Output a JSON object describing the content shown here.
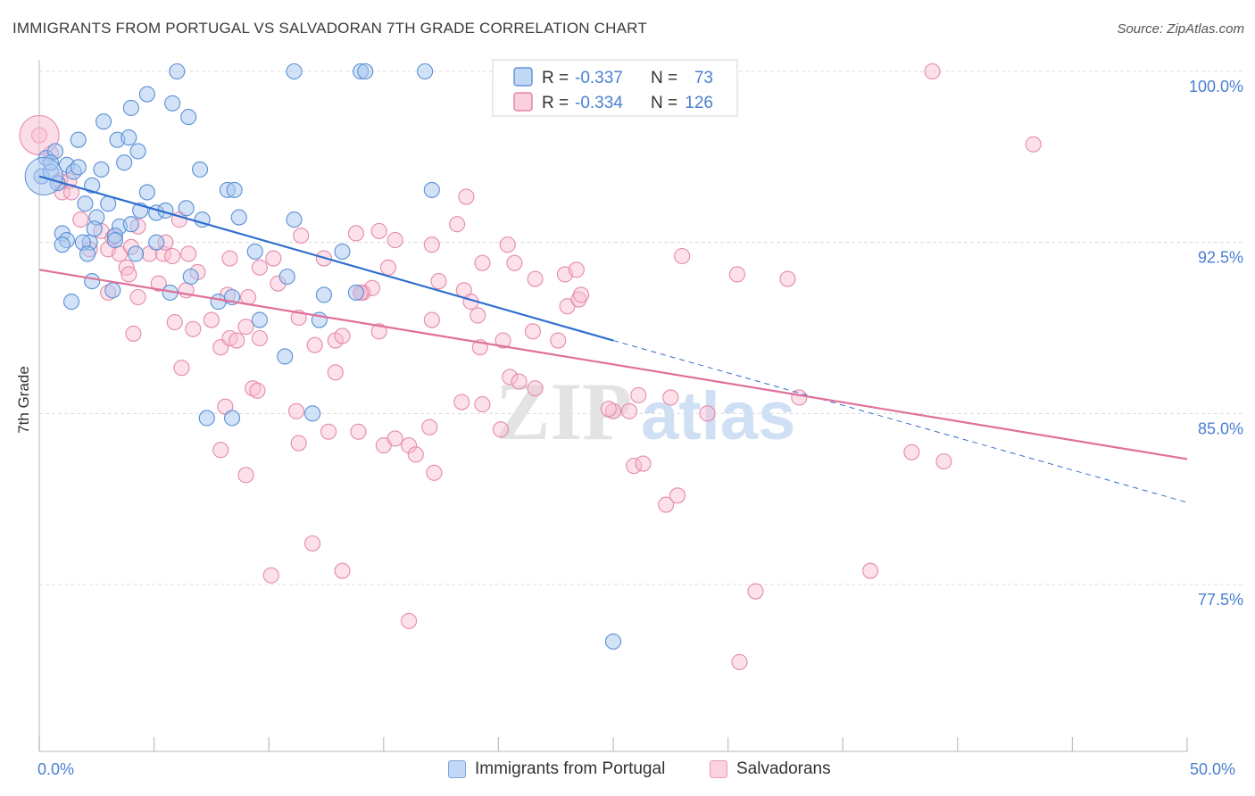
{
  "title": "IMMIGRANTS FROM PORTUGAL VS SALVADORAN 7TH GRADE CORRELATION CHART",
  "source": "Source: ZipAtlas.com",
  "watermark": {
    "zip": "ZIP",
    "atlas": "atlas"
  },
  "legend_top": [
    {
      "r_label": "R =",
      "r_value": "-0.337",
      "n_label": "N =",
      "n_value": "73",
      "color": "#a8c8f0",
      "stroke": "#4a7fd1"
    },
    {
      "r_label": "R =",
      "r_value": "-0.334",
      "n_label": "N =",
      "n_value": "126",
      "color": "#f8bcd0",
      "stroke": "#e0709a"
    }
  ],
  "colors": {
    "blue_fill": "#a8c8f0",
    "blue_stroke": "#5a8fd6",
    "blue_line": "#2f6fcf",
    "pink_fill": "#f8bcd0",
    "pink_stroke": "#e58aab",
    "pink_line": "#e0709a",
    "value_text": "#4a7fd1"
  },
  "chart_data": {
    "type": "scatter",
    "title": "IMMIGRANTS FROM PORTUGAL VS SALVADORAN 7TH GRADE CORRELATION CHART",
    "xlabel": "",
    "ylabel": "7th Grade",
    "xlim": [
      0,
      50
    ],
    "ylim": [
      70.0,
      100.7
    ],
    "x_tick_labels": [
      "0.0%",
      "50.0%"
    ],
    "y_ticks": [
      77.5,
      85.0,
      92.5,
      100.0
    ],
    "y_tick_labels": [
      "77.5%",
      "85.0%",
      "92.5%",
      "100.0%"
    ],
    "grid": true,
    "legend_position": "top-center",
    "series": [
      {
        "name": "Immigrants from Portugal",
        "trend": {
          "x": [
            0,
            25
          ],
          "y": [
            95.4,
            88.2
          ],
          "dashed_to": [
            50,
            81.1
          ]
        },
        "points": [
          [
            0.1,
            95.4
          ],
          [
            0.3,
            96.2
          ],
          [
            0.5,
            95.6
          ],
          [
            0.8,
            95.1
          ],
          [
            1.2,
            95.9
          ],
          [
            0.7,
            96.5
          ],
          [
            1.5,
            95.6
          ],
          [
            1.7,
            95.8
          ],
          [
            2.3,
            95.0
          ],
          [
            2.7,
            95.7
          ],
          [
            1.7,
            97.0
          ],
          [
            2.8,
            97.8
          ],
          [
            3.4,
            97.0
          ],
          [
            3.9,
            97.1
          ],
          [
            4.3,
            96.5
          ],
          [
            3.7,
            96.0
          ],
          [
            4.7,
            99.0
          ],
          [
            5.8,
            98.6
          ],
          [
            6.5,
            98.0
          ],
          [
            4.0,
            98.4
          ],
          [
            6.0,
            100.0
          ],
          [
            11.1,
            100.0
          ],
          [
            14.0,
            100.0
          ],
          [
            14.2,
            100.0
          ],
          [
            16.8,
            100.0
          ],
          [
            7.0,
            95.7
          ],
          [
            8.2,
            94.8
          ],
          [
            8.5,
            94.8
          ],
          [
            4.7,
            94.7
          ],
          [
            2.0,
            94.2
          ],
          [
            3.0,
            94.2
          ],
          [
            4.4,
            93.9
          ],
          [
            5.1,
            93.8
          ],
          [
            6.4,
            94.0
          ],
          [
            7.1,
            93.5
          ],
          [
            2.5,
            93.6
          ],
          [
            3.5,
            93.2
          ],
          [
            1.0,
            92.9
          ],
          [
            2.2,
            92.5
          ],
          [
            1.9,
            92.5
          ],
          [
            1.2,
            92.6
          ],
          [
            3.3,
            92.8
          ],
          [
            5.1,
            92.5
          ],
          [
            8.7,
            93.6
          ],
          [
            11.1,
            93.5
          ],
          [
            9.4,
            92.1
          ],
          [
            13.2,
            92.1
          ],
          [
            2.1,
            92.0
          ],
          [
            3.3,
            92.6
          ],
          [
            4.2,
            92.0
          ],
          [
            2.3,
            90.8
          ],
          [
            3.2,
            90.4
          ],
          [
            1.4,
            89.9
          ],
          [
            6.6,
            91.0
          ],
          [
            10.8,
            91.0
          ],
          [
            7.8,
            89.9
          ],
          [
            8.4,
            90.1
          ],
          [
            5.7,
            90.3
          ],
          [
            12.4,
            90.2
          ],
          [
            13.8,
            90.3
          ],
          [
            9.6,
            89.1
          ],
          [
            12.2,
            89.1
          ],
          [
            10.7,
            87.5
          ],
          [
            7.3,
            84.8
          ],
          [
            8.4,
            84.8
          ],
          [
            11.9,
            85.0
          ],
          [
            17.1,
            94.8
          ],
          [
            25.0,
            75.0
          ],
          [
            1.0,
            92.4
          ],
          [
            4.0,
            93.3
          ],
          [
            5.5,
            93.9
          ],
          [
            2.4,
            93.1
          ],
          [
            0.5,
            96.0
          ]
        ]
      },
      {
        "name": "Salvadorans",
        "trend": {
          "x": [
            0,
            50
          ],
          "y": [
            91.3,
            83.0
          ]
        },
        "points": [
          [
            0.0,
            97.2
          ],
          [
            0.5,
            96.4
          ],
          [
            0.9,
            95.2
          ],
          [
            1.3,
            95.2
          ],
          [
            1.0,
            94.7
          ],
          [
            1.4,
            94.7
          ],
          [
            1.8,
            93.5
          ],
          [
            2.7,
            93.0
          ],
          [
            3.2,
            92.7
          ],
          [
            4.3,
            93.2
          ],
          [
            3.0,
            92.2
          ],
          [
            3.5,
            92.0
          ],
          [
            4.0,
            92.3
          ],
          [
            4.8,
            92.0
          ],
          [
            5.4,
            92.0
          ],
          [
            5.5,
            92.5
          ],
          [
            6.1,
            93.5
          ],
          [
            6.5,
            92.0
          ],
          [
            5.8,
            91.9
          ],
          [
            3.8,
            91.4
          ],
          [
            3.9,
            91.1
          ],
          [
            5.2,
            90.7
          ],
          [
            6.9,
            91.2
          ],
          [
            8.3,
            91.8
          ],
          [
            9.6,
            91.4
          ],
          [
            10.2,
            91.8
          ],
          [
            10.4,
            90.7
          ],
          [
            11.4,
            92.8
          ],
          [
            12.4,
            91.8
          ],
          [
            13.8,
            92.9
          ],
          [
            14.8,
            93.0
          ],
          [
            15.5,
            92.6
          ],
          [
            17.1,
            92.4
          ],
          [
            18.2,
            93.3
          ],
          [
            18.6,
            94.5
          ],
          [
            19.3,
            91.6
          ],
          [
            20.4,
            92.4
          ],
          [
            20.7,
            91.6
          ],
          [
            17.4,
            90.8
          ],
          [
            18.5,
            90.4
          ],
          [
            18.8,
            89.9
          ],
          [
            19.1,
            89.3
          ],
          [
            21.6,
            90.9
          ],
          [
            22.9,
            91.1
          ],
          [
            23.0,
            89.7
          ],
          [
            23.5,
            90.0
          ],
          [
            23.4,
            91.3
          ],
          [
            14.1,
            90.3
          ],
          [
            14.5,
            90.5
          ],
          [
            14.0,
            90.3
          ],
          [
            14.8,
            88.6
          ],
          [
            11.3,
            89.2
          ],
          [
            12.0,
            88.0
          ],
          [
            12.9,
            88.2
          ],
          [
            13.2,
            88.4
          ],
          [
            17.1,
            89.1
          ],
          [
            15.2,
            91.4
          ],
          [
            3.0,
            90.3
          ],
          [
            4.3,
            90.1
          ],
          [
            6.4,
            90.4
          ],
          [
            5.9,
            89.0
          ],
          [
            7.5,
            89.1
          ],
          [
            6.7,
            88.7
          ],
          [
            7.9,
            87.9
          ],
          [
            8.3,
            88.3
          ],
          [
            8.6,
            88.2
          ],
          [
            9.0,
            88.8
          ],
          [
            9.6,
            88.3
          ],
          [
            9.1,
            90.1
          ],
          [
            8.2,
            90.2
          ],
          [
            4.1,
            88.5
          ],
          [
            6.2,
            87.0
          ],
          [
            12.9,
            86.8
          ],
          [
            9.3,
            86.1
          ],
          [
            9.5,
            86.0
          ],
          [
            11.2,
            85.1
          ],
          [
            12.6,
            84.2
          ],
          [
            13.9,
            84.2
          ],
          [
            15.0,
            83.6
          ],
          [
            15.5,
            83.9
          ],
          [
            16.1,
            83.6
          ],
          [
            16.4,
            83.2
          ],
          [
            17.0,
            84.4
          ],
          [
            17.2,
            82.4
          ],
          [
            18.4,
            85.5
          ],
          [
            19.3,
            85.4
          ],
          [
            20.1,
            84.3
          ],
          [
            20.5,
            86.6
          ],
          [
            20.9,
            86.4
          ],
          [
            21.6,
            86.1
          ],
          [
            21.5,
            88.6
          ],
          [
            22.6,
            88.2
          ],
          [
            19.2,
            87.9
          ],
          [
            20.2,
            88.2
          ],
          [
            26.1,
            85.8
          ],
          [
            27.5,
            85.7
          ],
          [
            25.0,
            85.1
          ],
          [
            25.7,
            85.1
          ],
          [
            25.9,
            82.7
          ],
          [
            26.3,
            82.8
          ],
          [
            27.3,
            81.0
          ],
          [
            27.8,
            81.4
          ],
          [
            29.1,
            85.0
          ],
          [
            30.4,
            91.1
          ],
          [
            31.2,
            77.2
          ],
          [
            32.6,
            90.9
          ],
          [
            33.1,
            85.7
          ],
          [
            30.5,
            74.1
          ],
          [
            36.2,
            78.1
          ],
          [
            38.0,
            83.3
          ],
          [
            39.4,
            82.9
          ],
          [
            8.1,
            85.3
          ],
          [
            7.9,
            83.4
          ],
          [
            11.3,
            83.7
          ],
          [
            9.0,
            82.3
          ],
          [
            11.9,
            79.3
          ],
          [
            10.1,
            77.9
          ],
          [
            13.2,
            78.1
          ],
          [
            16.1,
            75.9
          ],
          [
            28.0,
            91.9
          ],
          [
            38.9,
            100.0
          ],
          [
            43.3,
            96.8
          ],
          [
            14.0,
            90.3
          ],
          [
            23.6,
            90.2
          ],
          [
            24.8,
            85.2
          ],
          [
            2.2,
            92.2
          ]
        ]
      }
    ]
  },
  "bottom_legend": [
    {
      "label": "Immigrants from Portugal"
    },
    {
      "label": "Salvadorans"
    }
  ]
}
